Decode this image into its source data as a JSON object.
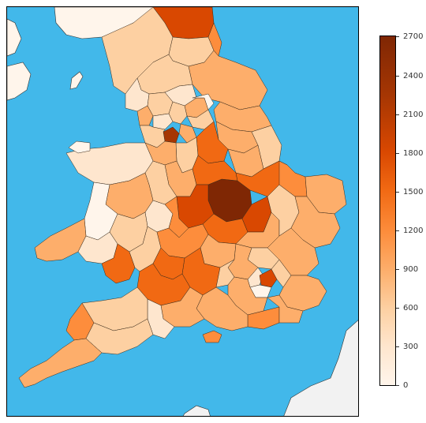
{
  "map": {
    "sea_color": "#42b8ea",
    "palette": [
      "#fff5eb",
      "#fee6ce",
      "#fdd0a2",
      "#fdae6b",
      "#fd8d3c",
      "#f16913",
      "#d94801",
      "#a63603",
      "#7f2704"
    ]
  },
  "colorbar": {
    "min": 0,
    "max": 2700,
    "ticks": [
      "0",
      "300",
      "600",
      "900",
      "1200",
      "1500",
      "1800",
      "2100",
      "2400",
      "2700"
    ]
  }
}
